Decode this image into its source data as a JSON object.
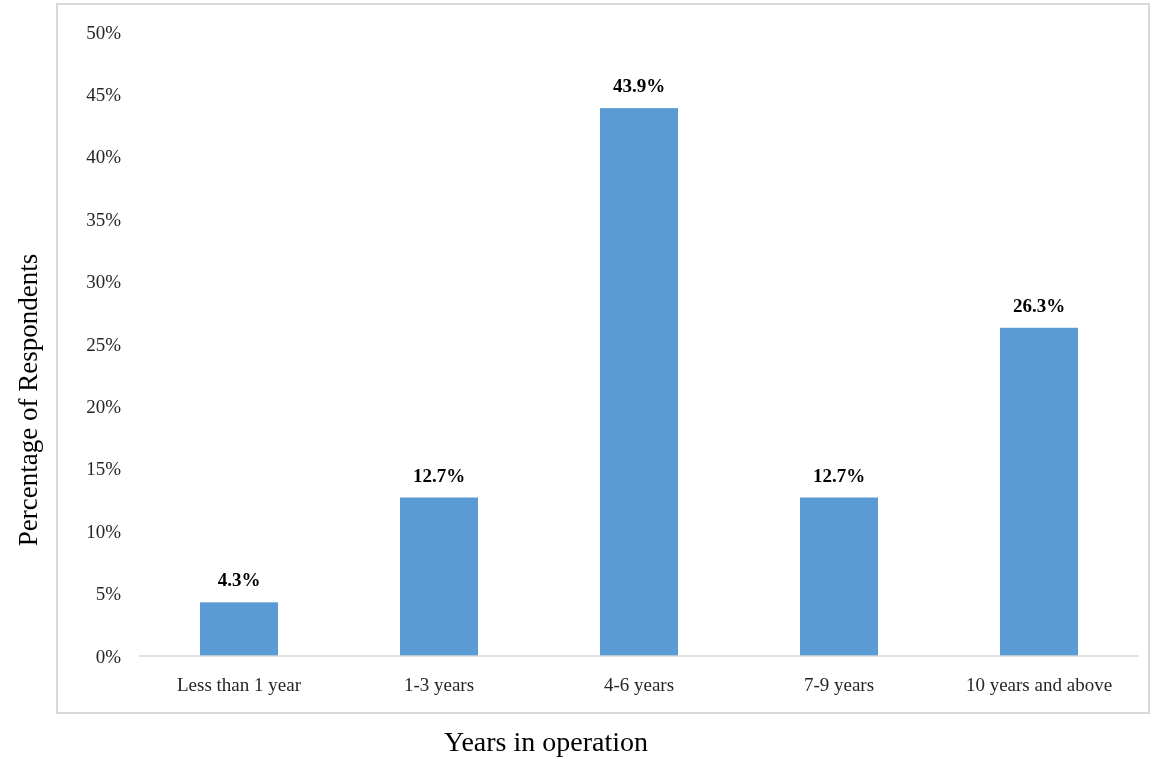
{
  "chart_data": {
    "type": "bar",
    "xlabel": "Years in operation",
    "ylabel": "Percentage of Respondents",
    "categories": [
      "Less than 1 year",
      "1-3 years",
      "4-6 years",
      "7-9 years",
      "10 years and above"
    ],
    "values": [
      4.3,
      12.7,
      43.9,
      12.7,
      26.3
    ],
    "color": "#5b9bd5",
    "value_labels": [
      "4.3%",
      "12.7%",
      "43.9%",
      "12.7%",
      "26.3%"
    ],
    "ylim": [
      0,
      50
    ],
    "yticks": [
      {
        "value": 0,
        "label": "0%"
      },
      {
        "value": 5,
        "label": "5%"
      },
      {
        "value": 10,
        "label": "10%"
      },
      {
        "value": 15,
        "label": "15%"
      },
      {
        "value": 20,
        "label": "20%"
      },
      {
        "value": 25,
        "label": "25%"
      },
      {
        "value": 30,
        "label": "30%"
      },
      {
        "value": 35,
        "label": "35%"
      },
      {
        "value": 40,
        "label": "40%"
      },
      {
        "value": 45,
        "label": "45%"
      },
      {
        "value": 50,
        "label": "50%"
      }
    ]
  }
}
